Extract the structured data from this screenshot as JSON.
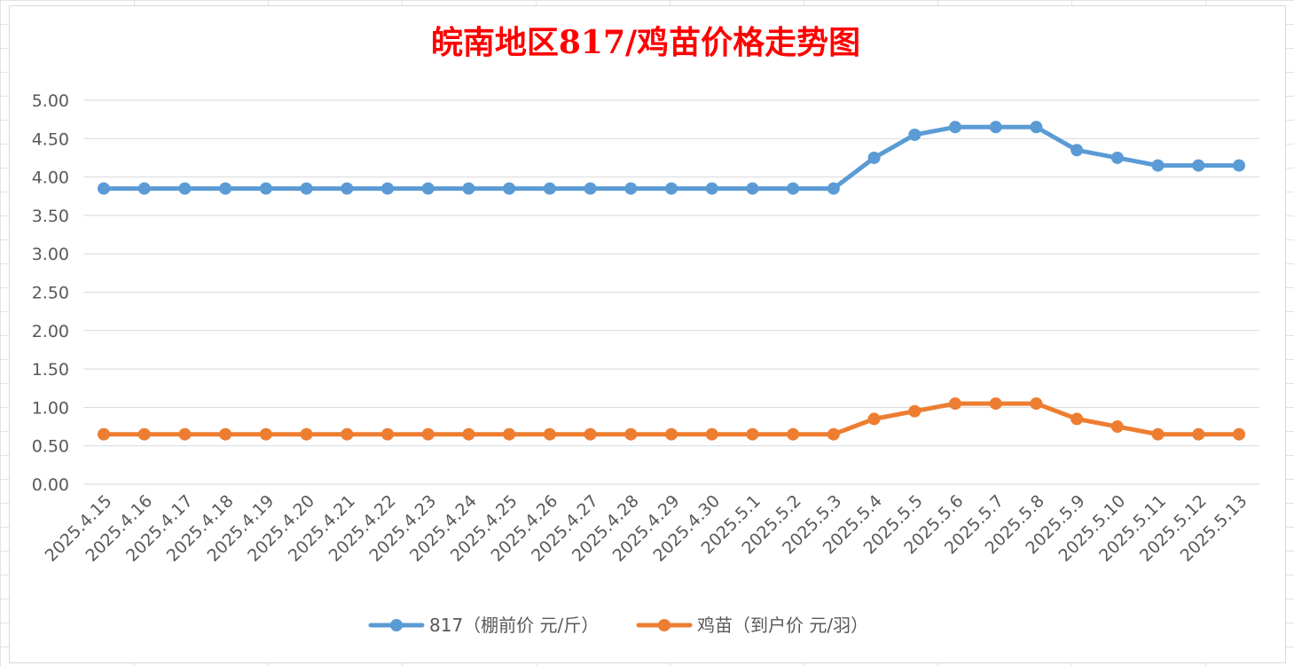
{
  "chart_data": {
    "type": "line",
    "title": "皖南地区817/鸡苗价格走势图",
    "categories": [
      "2025.4.15",
      "2025.4.16",
      "2025.4.17",
      "2025.4.18",
      "2025.4.19",
      "2025.4.20",
      "2025.4.21",
      "2025.4.22",
      "2025.4.23",
      "2025.4.24",
      "2025.4.25",
      "2025.4.26",
      "2025.4.27",
      "2025.4.28",
      "2025.4.29",
      "2025.4.30",
      "2025.5.1",
      "2025.5.2",
      "2025.5.3",
      "2025.5.4",
      "2025.5.5",
      "2025.5.6",
      "2025.5.7",
      "2025.5.8",
      "2025.5.9",
      "2025.5.10",
      "2025.5.11",
      "2025.5.12",
      "2025.5.13"
    ],
    "series": [
      {
        "name": "817（棚前价 元/斤）",
        "color": "#5b9bd5",
        "values": [
          3.85,
          3.85,
          3.85,
          3.85,
          3.85,
          3.85,
          3.85,
          3.85,
          3.85,
          3.85,
          3.85,
          3.85,
          3.85,
          3.85,
          3.85,
          3.85,
          3.85,
          3.85,
          3.85,
          4.25,
          4.55,
          4.65,
          4.65,
          4.65,
          4.35,
          4.25,
          4.15,
          4.15,
          4.15
        ]
      },
      {
        "name": "鸡苗（到户价 元/羽）",
        "color": "#ed7d31",
        "values": [
          0.65,
          0.65,
          0.65,
          0.65,
          0.65,
          0.65,
          0.65,
          0.65,
          0.65,
          0.65,
          0.65,
          0.65,
          0.65,
          0.65,
          0.65,
          0.65,
          0.65,
          0.65,
          0.65,
          0.85,
          0.95,
          1.05,
          1.05,
          1.05,
          0.85,
          0.75,
          0.65,
          0.65,
          0.65
        ]
      }
    ],
    "yticks": [
      "0.00",
      "0.50",
      "1.00",
      "1.50",
      "2.00",
      "2.50",
      "3.00",
      "3.50",
      "4.00",
      "4.50",
      "5.00"
    ],
    "ylim": [
      0,
      5
    ],
    "grid": true,
    "legend_position": "bottom",
    "title_color": "#ff0000"
  }
}
